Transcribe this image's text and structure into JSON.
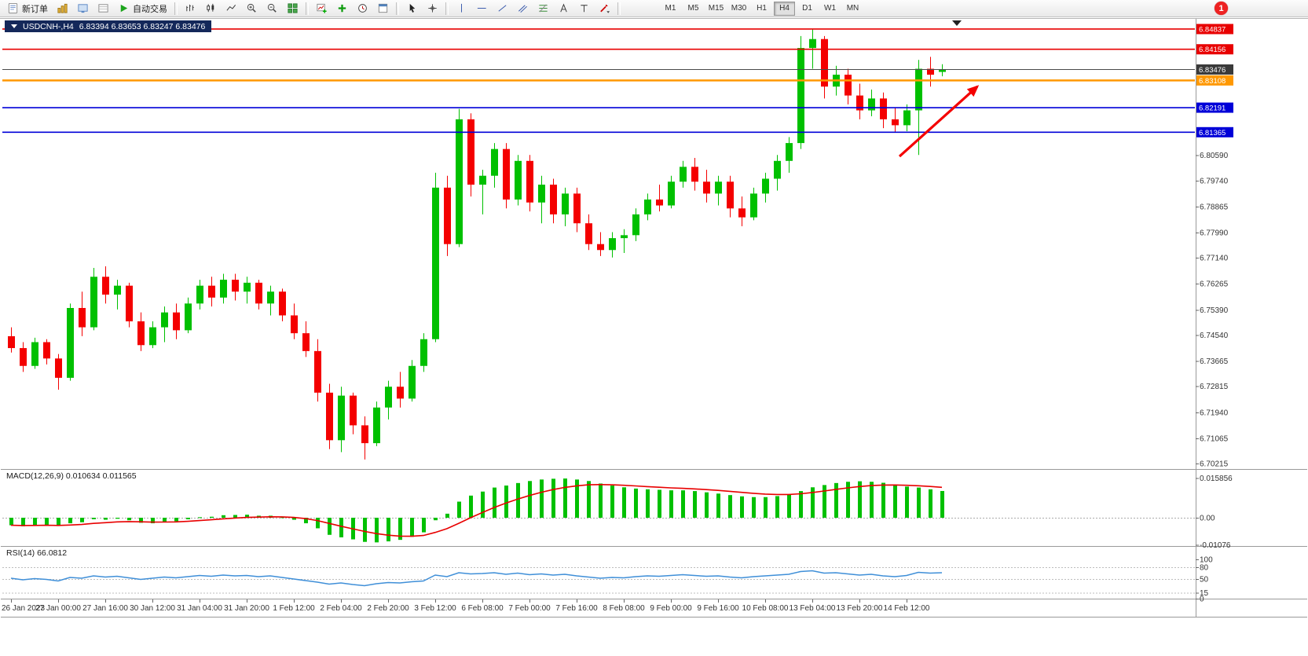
{
  "toolbar": {
    "new_order_label": "新订单",
    "auto_trading_label": "自动交易",
    "timeframes": [
      "M1",
      "M5",
      "M15",
      "M30",
      "H1",
      "H4",
      "D1",
      "W1",
      "MN"
    ],
    "active_timeframe": "H4",
    "notification_count": "1"
  },
  "chart": {
    "title": "USDCNH-,H4",
    "ohlc": "6.83394 6.83653 6.83247 6.83476",
    "macd_label": "MACD(12,26,9) 0.010634 0.011565",
    "rsi_label": "RSI(14) 66.0812"
  },
  "chart_data": {
    "type": "candlestick",
    "symbol": "USDCNH-",
    "timeframe": "H4",
    "last_bar": {
      "open": 6.83394,
      "high": 6.83653,
      "low": 6.83247,
      "close": 6.83476
    },
    "price_range": [
      6.7003,
      6.8518
    ],
    "colors": {
      "up": "#00c000",
      "down": "#f40000",
      "macd_hist": "#00c000",
      "macd_signal": "#e80000",
      "rsi": "#3f8fd8",
      "grid": "#9a9a9a"
    },
    "levels": [
      {
        "price": 6.84837,
        "label": "6.84837",
        "color": "#e80000",
        "width": 1.6,
        "kind": "resistance"
      },
      {
        "price": 6.84156,
        "label": "6.84156",
        "color": "#e80000",
        "width": 1.6,
        "kind": "resistance"
      },
      {
        "price": 6.83476,
        "label": "6.83476",
        "color": "#4a4a4a",
        "width": 1,
        "kind": "current-price"
      },
      {
        "price": 6.83108,
        "label": "6.83108",
        "color": "#ff9800",
        "width": 2.4,
        "kind": "pivot"
      },
      {
        "price": 6.82191,
        "label": "6.82191",
        "color": "#0000d8",
        "width": 1.6,
        "kind": "support"
      },
      {
        "price": 6.81365,
        "label": "6.81365",
        "color": "#0000d8",
        "width": 1.6,
        "k4ind": "support"
      }
    ],
    "y_ticks": [
      "6.80590",
      "6.79740",
      "6.78865",
      "6.77990",
      "6.77140",
      "6.76265",
      "6.75390",
      "6.74540",
      "6.73665",
      "6.72815",
      "6.71940",
      "6.71065",
      "6.70215"
    ],
    "time_labels": [
      "26 Jan 2023",
      "27 Jan 00:00",
      "27 Jan 16:00",
      "30 Jan 12:00",
      "31 Jan 04:00",
      "31 Jan 20:00",
      "1 Feb 12:00",
      "2 Feb 04:00",
      "2 Feb 20:00",
      "3 Feb 12:00",
      "6 Feb 08:00",
      "7 Feb 00:00",
      "7 Feb 16:00",
      "8 Feb 08:00",
      "9 Feb 00:00",
      "9 Feb 16:00",
      "10 Feb 08:00",
      "13 Feb 04:00",
      "13 Feb 20:00",
      "14 Feb 12:00"
    ],
    "label_every_n_bars": 4,
    "candles": [
      [
        6.745,
        6.748,
        6.7395,
        6.741
      ],
      [
        6.741,
        6.743,
        6.733,
        6.735
      ],
      [
        6.735,
        6.7445,
        6.734,
        6.743
      ],
      [
        6.743,
        6.744,
        6.7355,
        6.7375
      ],
      [
        6.7375,
        6.739,
        6.727,
        6.731
      ],
      [
        6.731,
        6.756,
        6.73,
        6.7545
      ],
      [
        6.7545,
        6.76,
        6.745,
        6.748
      ],
      [
        6.748,
        6.768,
        6.747,
        6.765
      ],
      [
        6.765,
        6.7685,
        6.756,
        6.759
      ],
      [
        6.759,
        6.764,
        6.754,
        6.762
      ],
      [
        6.762,
        6.763,
        6.748,
        6.75
      ],
      [
        6.75,
        6.753,
        6.74,
        6.742
      ],
      [
        6.742,
        6.75,
        6.741,
        6.748
      ],
      [
        6.748,
        6.755,
        6.743,
        6.753
      ],
      [
        6.753,
        6.756,
        6.744,
        6.747
      ],
      [
        6.747,
        6.758,
        6.746,
        6.756
      ],
      [
        6.756,
        6.764,
        6.754,
        6.762
      ],
      [
        6.762,
        6.765,
        6.755,
        6.758
      ],
      [
        6.758,
        6.766,
        6.756,
        6.764
      ],
      [
        6.764,
        6.766,
        6.757,
        6.76
      ],
      [
        6.76,
        6.765,
        6.756,
        6.763
      ],
      [
        6.763,
        6.764,
        6.754,
        6.756
      ],
      [
        6.756,
        6.762,
        6.752,
        6.76
      ],
      [
        6.76,
        6.761,
        6.75,
        6.752
      ],
      [
        6.752,
        6.756,
        6.744,
        6.746
      ],
      [
        6.746,
        6.75,
        6.738,
        6.74
      ],
      [
        6.74,
        6.744,
        6.723,
        6.726
      ],
      [
        6.726,
        6.729,
        6.707,
        6.71
      ],
      [
        6.71,
        6.728,
        6.706,
        6.725
      ],
      [
        6.725,
        6.726,
        6.712,
        6.715
      ],
      [
        6.715,
        6.718,
        6.7035,
        6.709
      ],
      [
        6.709,
        6.723,
        6.708,
        6.721
      ],
      [
        6.721,
        6.73,
        6.717,
        6.728
      ],
      [
        6.728,
        6.733,
        6.721,
        6.724
      ],
      [
        6.724,
        6.737,
        6.723,
        6.735
      ],
      [
        6.735,
        6.746,
        6.733,
        6.744
      ],
      [
        6.744,
        6.8,
        6.743,
        6.795
      ],
      [
        6.795,
        6.799,
        6.772,
        6.776
      ],
      [
        6.776,
        6.8215,
        6.775,
        6.818
      ],
      [
        6.818,
        6.82,
        6.792,
        6.796
      ],
      [
        6.796,
        6.801,
        6.786,
        6.799
      ],
      [
        6.799,
        6.81,
        6.795,
        6.808
      ],
      [
        6.808,
        6.81,
        6.788,
        6.791
      ],
      [
        6.791,
        6.806,
        6.789,
        6.804
      ],
      [
        6.804,
        6.806,
        6.787,
        6.79
      ],
      [
        6.79,
        6.799,
        6.783,
        6.796
      ],
      [
        6.796,
        6.798,
        6.783,
        6.786
      ],
      [
        6.786,
        6.795,
        6.782,
        6.793
      ],
      [
        6.793,
        6.795,
        6.78,
        6.783
      ],
      [
        6.783,
        6.786,
        6.774,
        6.776
      ],
      [
        6.776,
        6.78,
        6.772,
        6.774
      ],
      [
        6.774,
        6.78,
        6.7715,
        6.778
      ],
      [
        6.778,
        6.781,
        6.773,
        6.779
      ],
      [
        6.779,
        6.788,
        6.777,
        6.786
      ],
      [
        6.786,
        6.793,
        6.784,
        6.791
      ],
      [
        6.791,
        6.796,
        6.787,
        6.789
      ],
      [
        6.789,
        6.799,
        6.788,
        6.797
      ],
      [
        6.797,
        6.804,
        6.795,
        6.802
      ],
      [
        6.802,
        6.805,
        6.794,
        6.797
      ],
      [
        6.797,
        6.801,
        6.79,
        6.793
      ],
      [
        6.793,
        6.799,
        6.789,
        6.797
      ],
      [
        6.797,
        6.799,
        6.785,
        6.788
      ],
      [
        6.788,
        6.792,
        6.782,
        6.785
      ],
      [
        6.785,
        6.795,
        6.784,
        6.793
      ],
      [
        6.793,
        6.8,
        6.79,
        6.798
      ],
      [
        6.798,
        6.806,
        6.794,
        6.804
      ],
      [
        6.804,
        6.812,
        6.8,
        6.81
      ],
      [
        6.81,
        6.846,
        6.808,
        6.842
      ],
      [
        6.842,
        6.84837,
        6.835,
        6.845
      ],
      [
        6.845,
        6.846,
        6.825,
        6.829
      ],
      [
        6.829,
        6.836,
        6.826,
        6.833
      ],
      [
        6.833,
        6.835,
        6.823,
        6.826
      ],
      [
        6.826,
        6.83,
        6.818,
        6.821
      ],
      [
        6.821,
        6.828,
        6.819,
        6.825
      ],
      [
        6.825,
        6.827,
        6.815,
        6.818
      ],
      [
        6.818,
        6.822,
        6.8135,
        6.816
      ],
      [
        6.816,
        6.823,
        6.814,
        6.821
      ],
      [
        6.821,
        6.838,
        6.806,
        6.835
      ],
      [
        6.835,
        6.839,
        6.829,
        6.833
      ],
      [
        6.83394,
        6.83653,
        6.83247,
        6.83476
      ]
    ],
    "macd": {
      "name": "MACD(12,26,9)",
      "current_macd": "0.010634",
      "current_signal": "0.011565",
      "axis": [
        {
          "label": "0.015856",
          "value": 0.015856
        },
        {
          "label": "0.00",
          "value": 0
        },
        {
          "label": "-0.01076",
          "value": -0.01076
        }
      ],
      "values": [
        -0.003,
        -0.0034,
        -0.003,
        -0.0028,
        -0.0033,
        -0.0022,
        -0.0018,
        -0.0006,
        -0.0008,
        -0.0004,
        -0.001,
        -0.002,
        -0.0022,
        -0.0016,
        -0.0014,
        -0.0006,
        0.0002,
        0.0004,
        0.001,
        0.0011,
        0.0012,
        0.0008,
        0.0008,
        0.0002,
        -0.0008,
        -0.0022,
        -0.0042,
        -0.0068,
        -0.0078,
        -0.0086,
        -0.0096,
        -0.0098,
        -0.0094,
        -0.0088,
        -0.0076,
        -0.0058,
        -0.001,
        0.0016,
        0.0064,
        0.0088,
        0.0104,
        0.012,
        0.0128,
        0.0138,
        0.0146,
        0.0152,
        0.0155,
        0.0156,
        0.0152,
        0.0146,
        0.0136,
        0.0128,
        0.0121,
        0.0116,
        0.0113,
        0.0111,
        0.0109,
        0.0109,
        0.0106,
        0.0101,
        0.0096,
        0.009,
        0.0085,
        0.0082,
        0.0082,
        0.0086,
        0.0093,
        0.0106,
        0.0121,
        0.013,
        0.0138,
        0.0143,
        0.0145,
        0.0143,
        0.0139,
        0.0132,
        0.0124,
        0.012,
        0.0113,
        0.010634
      ]
    },
    "rsi": {
      "name": "RSI(14)",
      "current": "66.0812",
      "axis": [
        {
          "label": "100",
          "value": 100
        },
        {
          "label": "80",
          "value": 80
        },
        {
          "label": "50",
          "value": 50
        },
        {
          "label": "15",
          "value": 15
        },
        {
          "label": "0",
          "value": 0
        }
      ],
      "level_lines": [
        80,
        50,
        15
      ],
      "values": [
        52,
        48,
        51,
        49,
        45,
        54,
        52,
        58,
        55,
        57,
        53,
        49,
        52,
        55,
        53,
        56,
        59,
        57,
        60,
        58,
        59,
        56,
        58,
        54,
        50,
        46,
        42,
        37,
        40,
        36,
        33,
        38,
        41,
        40,
        43,
        45,
        60,
        56,
        66,
        63,
        64,
        66,
        62,
        65,
        61,
        63,
        60,
        62,
        58,
        55,
        52,
        54,
        53,
        56,
        58,
        57,
        59,
        61,
        59,
        57,
        58,
        55,
        53,
        56,
        58,
        60,
        62,
        69,
        71,
        65,
        66,
        63,
        60,
        62,
        58,
        56,
        59,
        67,
        65,
        66.08
      ]
    },
    "arrow_annotation": {
      "from_bar": 75.4,
      "from_price": 6.8055,
      "to_bar": 82.0,
      "to_price": 6.829,
      "color": "#f40000"
    }
  }
}
